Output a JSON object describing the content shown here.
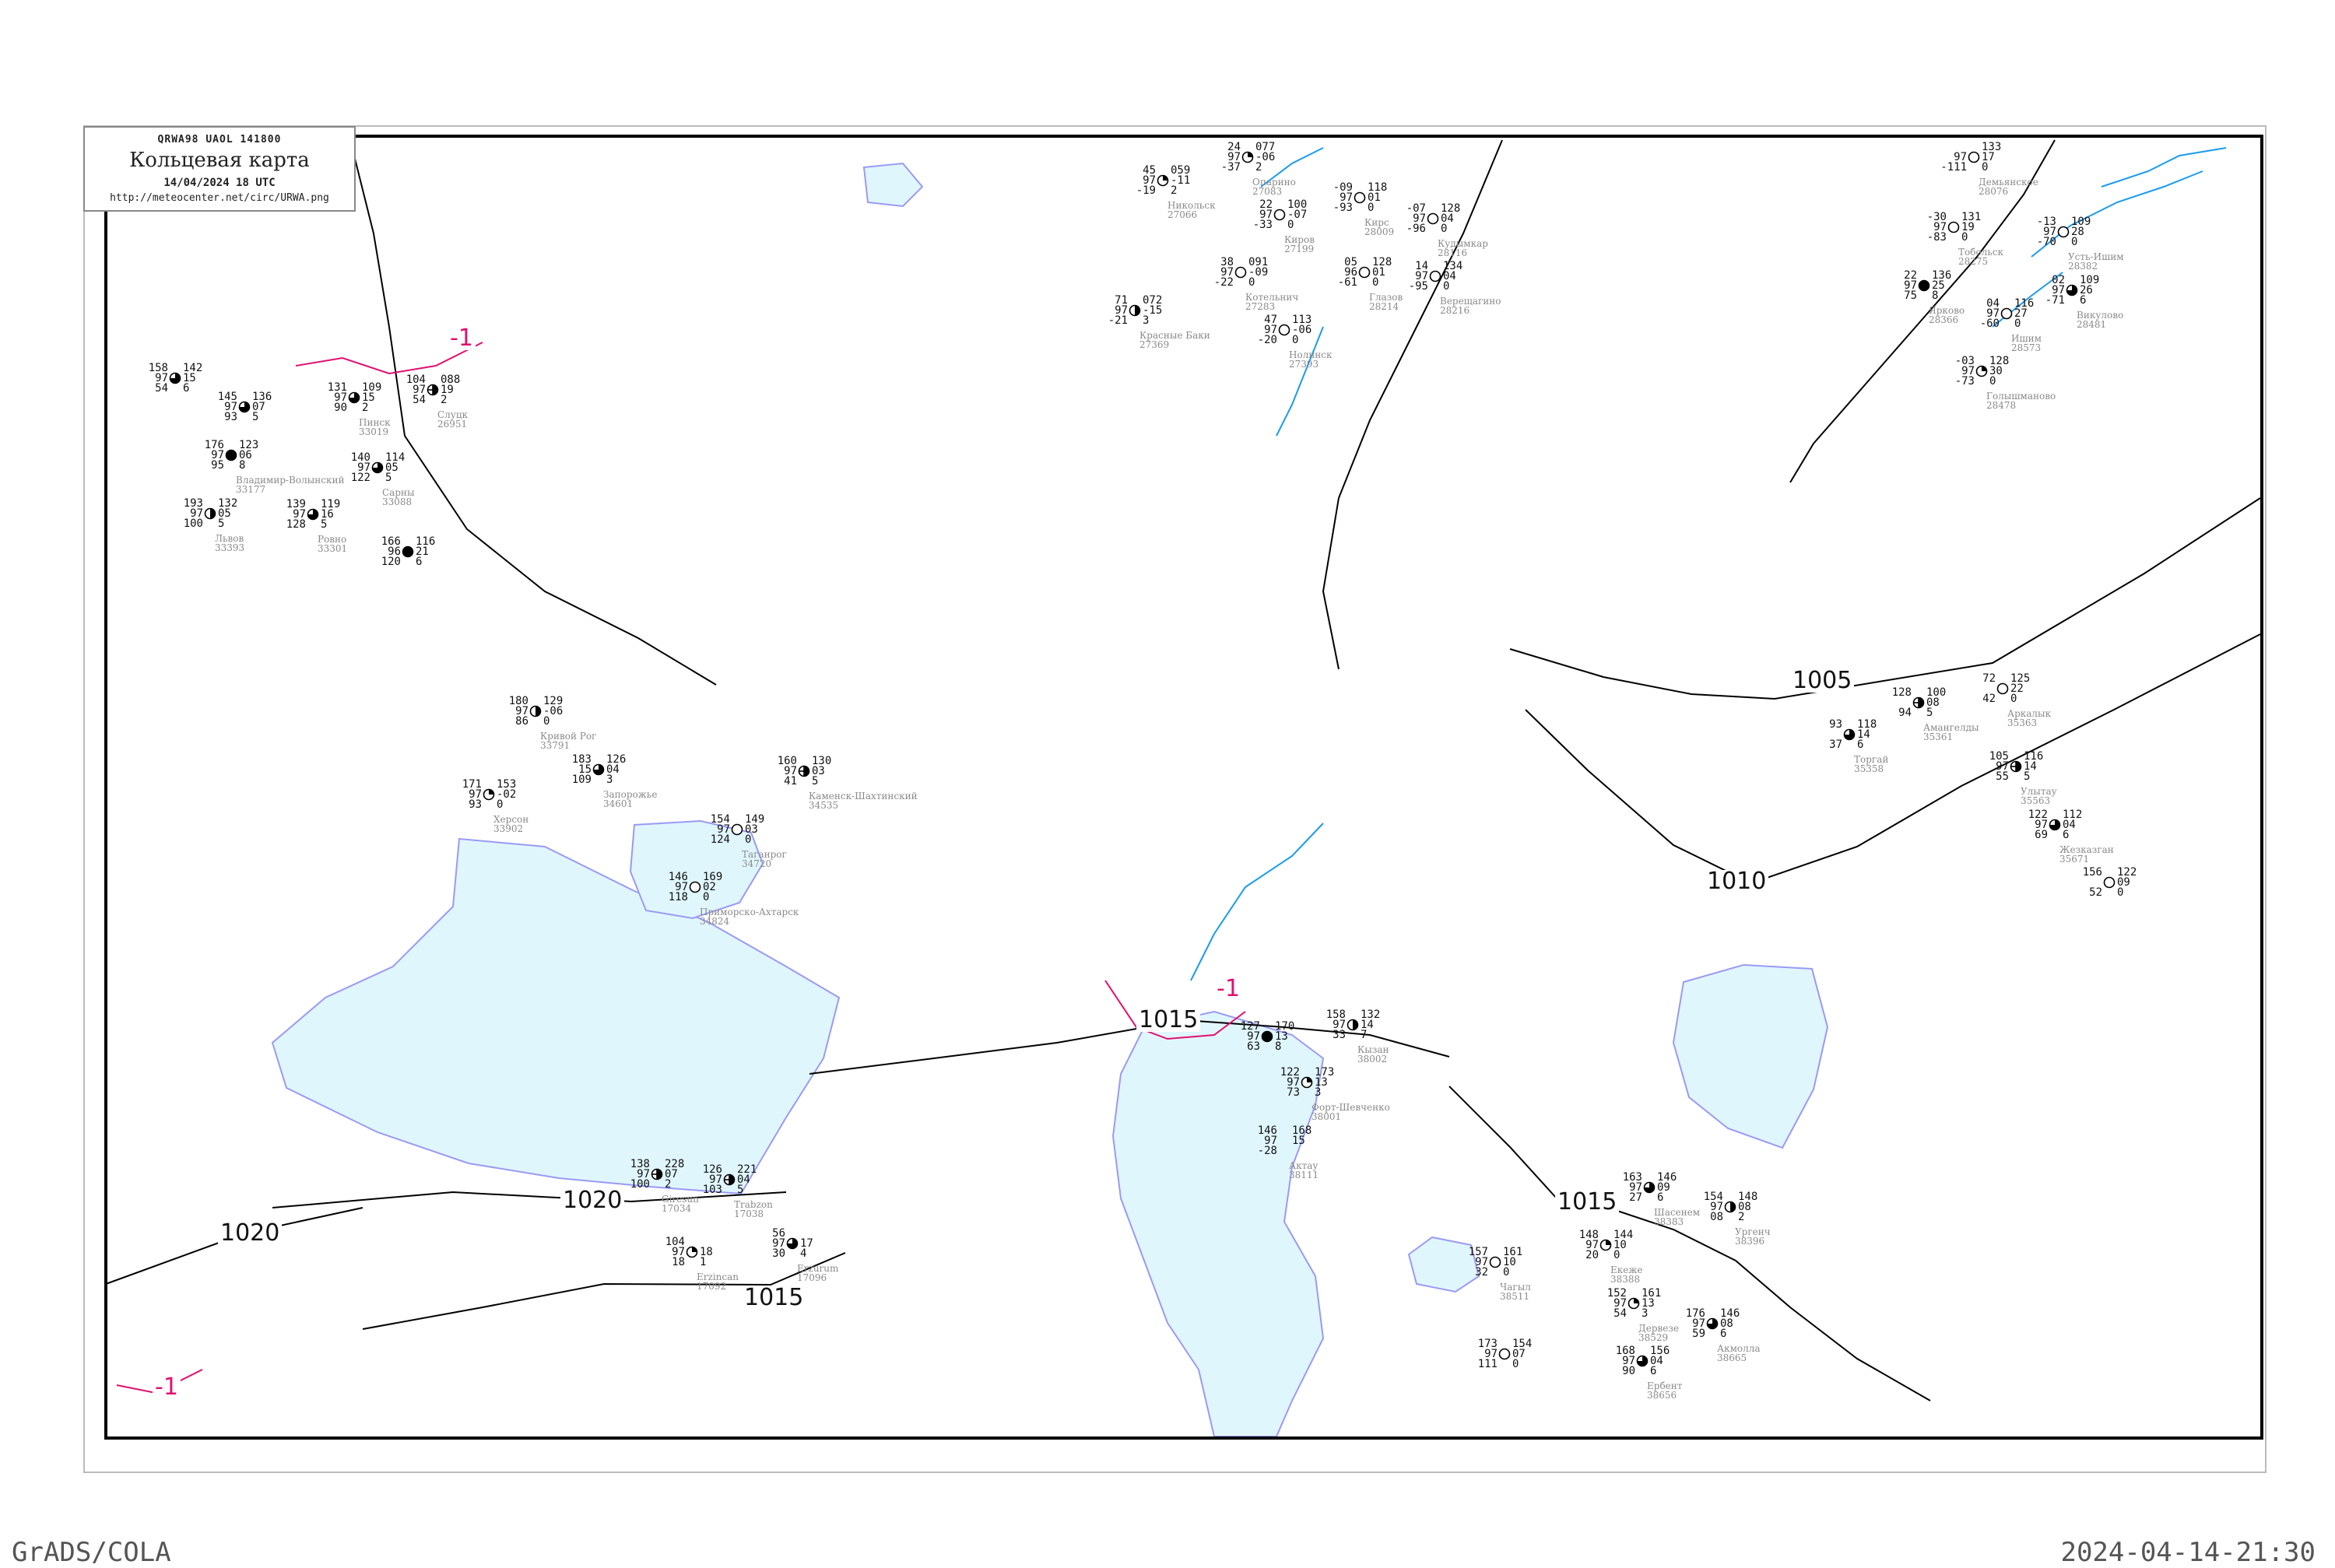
{
  "title_box": {
    "code": "QRWA98  UAOL  141800",
    "name": "Кольцевая карта",
    "date": "14/04/2024 18 UTC",
    "url": "http://meteocenter.net/circ/URWA.png"
  },
  "footer": {
    "left": "GrADS/COLA",
    "right": "2024-04-14-21:30"
  },
  "colors": {
    "sea": "#e0f6fd",
    "coast": "#9a9af5",
    "river": "#1a9bef",
    "isobar": "#000000",
    "isotherm": "#e0106f",
    "station_name": "#8a8a8a"
  },
  "isobar_labels": [
    "1005",
    "1010",
    "1015",
    "1015",
    "1015",
    "1020",
    "1020"
  ],
  "isotherm_labels": [
    "-1",
    "-1",
    "-1"
  ],
  "stations": [
    {
      "tl": "127",
      "ml": "97",
      "bl": "63",
      "tr": "170",
      "mr": "13",
      "br": "8",
      "cover": "full",
      "name": "",
      "id": ""
    },
    {
      "tl": "158",
      "ml": "97",
      "bl": "33",
      "tr": "132",
      "mr": "14",
      "br": "7",
      "cover": "vhalf",
      "name": "Кызан",
      "id": "38002"
    },
    {
      "tl": "122",
      "ml": "97",
      "bl": "73",
      "tr": "173",
      "mr": "13",
      "br": "3",
      "cover": "quarter",
      "name": "Форт-Шевченко",
      "id": "38001"
    },
    {
      "tl": "146",
      "ml": "97",
      "bl": "-28",
      "tr": "168",
      "mr": "15",
      "br": "",
      "cover": "none",
      "name": "Актау",
      "id": "38111"
    },
    {
      "tl": "128",
      "ml": "",
      "bl": "94",
      "tr": "100",
      "mr": "08",
      "br": "5",
      "cover": "cross",
      "name": "Амангелды",
      "id": "35361"
    },
    {
      "tl": "93",
      "ml": "",
      "bl": "37",
      "tr": "118",
      "mr": "14",
      "br": "6",
      "cover": "3q",
      "name": "Торгай",
      "id": "35358"
    },
    {
      "tl": "72",
      "ml": "",
      "bl": "42",
      "tr": "125",
      "mr": "22",
      "br": "0",
      "cover": "empty",
      "name": "Аркалык",
      "id": "35363"
    },
    {
      "tl": "105",
      "ml": "97",
      "bl": "55",
      "tr": "116",
      "mr": "14",
      "br": "5",
      "cover": "cross",
      "name": "Улытау",
      "id": "35563"
    },
    {
      "tl": "122",
      "ml": "97",
      "bl": "69",
      "tr": "112",
      "mr": "04",
      "br": "6",
      "cover": "3q",
      "name": "Жезказган",
      "id": "35671"
    },
    {
      "tl": "156",
      "ml": "",
      "bl": "52",
      "tr": "122",
      "mr": "09",
      "br": "0",
      "cover": "empty",
      "name": "",
      "id": ""
    },
    {
      "tl": "157",
      "ml": "97",
      "bl": "32",
      "tr": "161",
      "mr": "10",
      "br": "0",
      "cover": "empty",
      "name": "Чагыл",
      "id": "38511"
    },
    {
      "tl": "163",
      "ml": "97",
      "bl": "27",
      "tr": "146",
      "mr": "09",
      "br": "6",
      "cover": "3q",
      "name": "Шасенем",
      "id": "38383"
    },
    {
      "tl": "154",
      "ml": "97",
      "bl": "08",
      "tr": "148",
      "mr": "08",
      "br": "2",
      "cover": "vhalf",
      "name": "Ургенч",
      "id": "38396"
    },
    {
      "tl": "148",
      "ml": "97",
      "bl": "20",
      "tr": "144",
      "mr": "10",
      "br": "0",
      "cover": "quarter",
      "name": "Екеже",
      "id": "38388"
    },
    {
      "tl": "152",
      "ml": "97",
      "bl": "54",
      "tr": "161",
      "mr": "13",
      "br": "3",
      "cover": "quarter",
      "name": "Дервезе",
      "id": "38529"
    },
    {
      "tl": "176",
      "ml": "97",
      "bl": "59",
      "tr": "146",
      "mr": "08",
      "br": "6",
      "cover": "3q",
      "name": "Акмолла",
      "id": "38665"
    },
    {
      "tl": "168",
      "ml": "97",
      "bl": "90",
      "tr": "156",
      "mr": "04",
      "br": "6",
      "cover": "3q",
      "name": "Ербент",
      "id": "38656"
    },
    {
      "tl": "173",
      "ml": "97",
      "bl": "111",
      "tr": "154",
      "mr": "07",
      "br": "0",
      "cover": "empty",
      "name": "",
      "id": ""
    },
    {
      "tl": "138",
      "ml": "97",
      "bl": "100",
      "tr": "228",
      "mr": "07",
      "br": "2",
      "cover": "cross",
      "name": "Giresun",
      "id": "17034"
    },
    {
      "tl": "126",
      "ml": "97",
      "bl": "103",
      "tr": "221",
      "mr": "04",
      "br": "5",
      "cover": "cross",
      "name": "Trabzon",
      "id": "17038"
    },
    {
      "tl": "104",
      "ml": "97",
      "bl": "18",
      "tr": "",
      "mr": "18",
      "br": "1",
      "cover": "quarter",
      "name": "Erzincan",
      "id": "17092"
    },
    {
      "tl": "56",
      "ml": "97",
      "bl": "30",
      "tr": "",
      "mr": "17",
      "br": "4",
      "cover": "3q",
      "name": "Erzurum",
      "id": "17096"
    },
    {
      "tl": "45",
      "ml": "97",
      "bl": "-19",
      "tr": "059",
      "mr": "-11",
      "br": "2",
      "cover": "quarter",
      "name": "Никольск",
      "id": "27066"
    },
    {
      "tl": "24",
      "ml": "97",
      "bl": "-37",
      "tr": "077",
      "mr": "-06",
      "br": "2",
      "cover": "quarter",
      "name": "Опарино",
      "id": "27083"
    },
    {
      "tl": "-09",
      "ml": "97",
      "bl": "-93",
      "tr": "118",
      "mr": "01",
      "br": "0",
      "cover": "empty",
      "name": "Кирс",
      "id": "28009"
    },
    {
      "tl": "22",
      "ml": "97",
      "bl": "-33",
      "tr": "100",
      "mr": "-07",
      "br": "0",
      "cover": "empty",
      "name": "Киров",
      "id": "27199"
    },
    {
      "tl": "38",
      "ml": "97",
      "bl": "-22",
      "tr": "091",
      "mr": "-09",
      "br": "0",
      "cover": "empty",
      "name": "Котельнич",
      "id": "27283"
    },
    {
      "tl": "47",
      "ml": "97",
      "bl": "-20",
      "tr": "113",
      "mr": "-06",
      "br": "0",
      "cover": "empty",
      "name": "Нолинск",
      "id": "27393"
    },
    {
      "tl": "05",
      "ml": "96",
      "bl": "-61",
      "tr": "128",
      "mr": "01",
      "br": "0",
      "cover": "empty",
      "name": "Глазов",
      "id": "28214"
    },
    {
      "tl": "14",
      "ml": "97",
      "bl": "-95",
      "tr": "134",
      "mr": "04",
      "br": "0",
      "cover": "empty",
      "name": "Верещагино",
      "id": "28216"
    },
    {
      "tl": "-07",
      "ml": "97",
      "bl": "-96",
      "tr": "128",
      "mr": "04",
      "br": "0",
      "cover": "empty",
      "name": "Кудымкар",
      "id": "28116"
    },
    {
      "tl": "71",
      "ml": "97",
      "bl": "-21",
      "tr": "072",
      "mr": "-15",
      "br": "3",
      "cover": "vhalf",
      "name": "Красные Баки",
      "id": "27369"
    },
    {
      "tl": "180",
      "ml": "97",
      "bl": "86",
      "tr": "129",
      "mr": "-06",
      "br": "0",
      "cover": "vhalf",
      "name": "Кривой Рог",
      "id": "33791"
    },
    {
      "tl": "183",
      "ml": "15",
      "bl": "109",
      "tr": "126",
      "mr": "04",
      "br": "3",
      "cover": "3q",
      "name": "Запорожье",
      "id": "34601"
    },
    {
      "tl": "171",
      "ml": "97",
      "bl": "93",
      "tr": "153",
      "mr": "-02",
      "br": "0",
      "cover": "quarter",
      "name": "Херсон",
      "id": "33902"
    },
    {
      "tl": "154",
      "ml": "97",
      "bl": "124",
      "tr": "149",
      "mr": "03",
      "br": "0",
      "cover": "empty",
      "name": "Таганрог",
      "id": "34720"
    },
    {
      "tl": "146",
      "ml": "97",
      "bl": "118",
      "tr": "169",
      "mr": "02",
      "br": "0",
      "cover": "empty",
      "name": "Приморско-Ахтарск",
      "id": "34824"
    },
    {
      "tl": "160",
      "ml": "97",
      "bl": "41",
      "tr": "130",
      "mr": "03",
      "br": "5",
      "cover": "cross",
      "name": "Каменск-Шахтинский",
      "id": "34535"
    },
    {
      "tl": "158",
      "ml": "97",
      "bl": "54",
      "tr": "142",
      "mr": "15",
      "br": "6",
      "cover": "3q",
      "name": "",
      "id": ""
    },
    {
      "tl": "145",
      "ml": "97",
      "bl": "93",
      "tr": "136",
      "mr": "07",
      "br": "5",
      "cover": "3q",
      "name": "",
      "id": ""
    },
    {
      "tl": "176",
      "ml": "97",
      "bl": "95",
      "tr": "123",
      "mr": "06",
      "br": "8",
      "cover": "full",
      "name": "Владимир-Волынский",
      "id": "33177"
    },
    {
      "tl": "131",
      "ml": "97",
      "bl": "90",
      "tr": "109",
      "mr": "15",
      "br": "2",
      "cover": "3q",
      "name": "Пинск",
      "id": "33019"
    },
    {
      "tl": "140",
      "ml": "97",
      "bl": "122",
      "tr": "114",
      "mr": "05",
      "br": "5",
      "cover": "3q",
      "name": "Сарны",
      "id": "33088"
    },
    {
      "tl": "139",
      "ml": "97",
      "bl": "128",
      "tr": "119",
      "mr": "16",
      "br": "5",
      "cover": "3q",
      "name": "Ровно",
      "id": "33301"
    },
    {
      "tl": "193",
      "ml": "97",
      "bl": "100",
      "tr": "132",
      "mr": "05",
      "br": "5",
      "cover": "vhalf",
      "name": "Львов",
      "id": "33393"
    },
    {
      "tl": "104",
      "ml": "97",
      "bl": "54",
      "tr": "088",
      "mr": "19",
      "br": "2",
      "cover": "cross",
      "name": "Слуцк",
      "id": "26951"
    },
    {
      "tl": "166",
      "ml": "96",
      "bl": "120",
      "tr": "116",
      "mr": "21",
      "br": "6",
      "cover": "full",
      "name": "",
      "id": ""
    },
    {
      "tl": "-30",
      "ml": "97",
      "bl": "-83",
      "tr": "131",
      "mr": "19",
      "br": "0",
      "cover": "empty",
      "name": "Тобольск",
      "id": "28275"
    },
    {
      "tl": "-13",
      "ml": "97",
      "bl": "-70",
      "tr": "109",
      "mr": "28",
      "br": "0",
      "cover": "empty",
      "name": "Усть-Ишим",
      "id": "28382"
    },
    {
      "tl": "02",
      "ml": "97",
      "bl": "-71",
      "tr": "109",
      "mr": "26",
      "br": "6",
      "cover": "3q",
      "name": "Викулово",
      "id": "28481"
    },
    {
      "tl": "22",
      "ml": "97",
      "bl": "75",
      "tr": "136",
      "mr": "25",
      "br": "8",
      "cover": "full",
      "name": "Ярково",
      "id": "28366"
    },
    {
      "tl": "-03",
      "ml": "97",
      "bl": "-73",
      "tr": "128",
      "mr": "30",
      "br": "0",
      "cover": "quarter",
      "name": "Голышманово",
      "id": "28478"
    },
    {
      "tl": "04",
      "ml": "97",
      "bl": "-60",
      "tr": "116",
      "mr": "27",
      "br": "0",
      "cover": "empty",
      "name": "Ишим",
      "id": "28573"
    },
    {
      "tl": "",
      "ml": "97",
      "bl": "-111",
      "tr": "133",
      "mr": "17",
      "br": "0",
      "cover": "empty",
      "name": "Демьянское",
      "id": "28076"
    }
  ]
}
